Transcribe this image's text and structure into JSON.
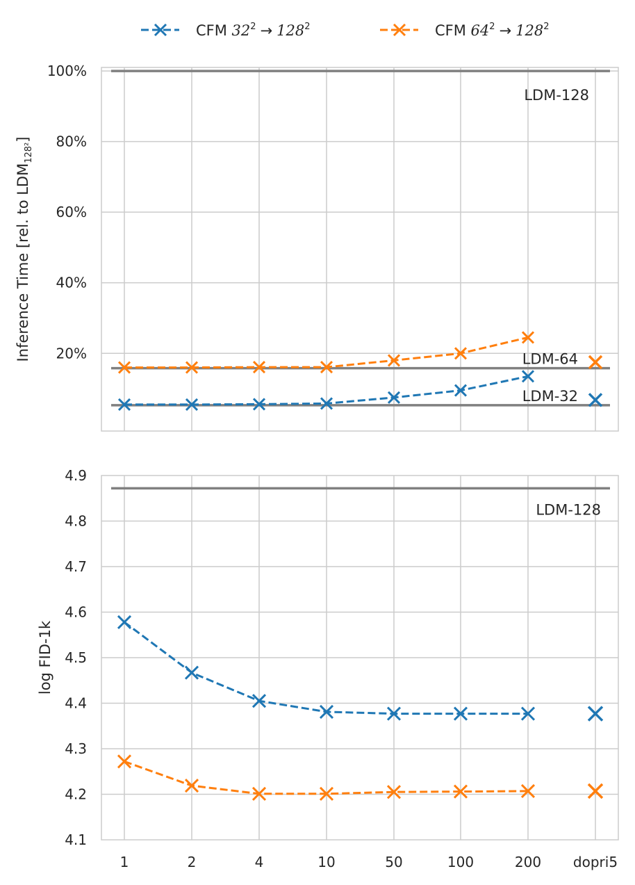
{
  "chart_data": [
    {
      "type": "line",
      "ylabel": "Inference Time [rel. to LDM",
      "ylabel_sub": "128²",
      "ylabel_tail": "]",
      "ylim": [
        -0.02,
        1.01
      ],
      "categories": [
        "1",
        "2",
        "4",
        "10",
        "50",
        "100",
        "200",
        "dopri5"
      ],
      "yticks": [
        0.2,
        0.4,
        0.6,
        0.8,
        1.0
      ],
      "ytick_labels": [
        "20%",
        "40%",
        "60%",
        "80%",
        "100%"
      ],
      "series": [
        {
          "name": "CFM 32² → 128²",
          "color": "#1f77b4",
          "values": [
            0.055,
            0.055,
            0.056,
            0.058,
            0.075,
            0.095,
            0.135,
            0.068
          ]
        },
        {
          "name": "CFM 64² → 128²",
          "color": "#ff7f0e",
          "values": [
            0.16,
            0.16,
            0.161,
            0.161,
            0.18,
            0.2,
            0.245,
            0.175
          ]
        }
      ],
      "reference_lines": [
        {
          "label": "LDM-128",
          "value": 1.0
        },
        {
          "label": "LDM-64",
          "value": 0.158
        },
        {
          "label": "LDM-32",
          "value": 0.053
        }
      ],
      "grid": true
    },
    {
      "type": "line",
      "ylabel": "log FID-1k",
      "ylim": [
        4.1,
        4.9
      ],
      "categories": [
        "1",
        "2",
        "4",
        "10",
        "50",
        "100",
        "200",
        "dopri5"
      ],
      "yticks": [
        4.1,
        4.2,
        4.3,
        4.4,
        4.5,
        4.6,
        4.7,
        4.8,
        4.9
      ],
      "ytick_labels": [
        "4.1",
        "4.2",
        "4.3",
        "4.4",
        "4.5",
        "4.6",
        "4.7",
        "4.8",
        "4.9"
      ],
      "series": [
        {
          "name": "CFM 32² → 128²",
          "color": "#1f77b4",
          "values": [
            4.578,
            4.467,
            4.405,
            4.381,
            4.377,
            4.377,
            4.377,
            4.377
          ]
        },
        {
          "name": "CFM 64² → 128²",
          "color": "#ff7f0e",
          "values": [
            4.272,
            4.219,
            4.201,
            4.201,
            4.205,
            4.206,
            4.207,
            4.207
          ]
        }
      ],
      "reference_lines": [
        {
          "label": "LDM-128",
          "value": 4.872
        }
      ],
      "grid": true
    }
  ],
  "legend": {
    "items": [
      {
        "prefix": "CFM ",
        "from": "32",
        "to": "128",
        "exp": "2",
        "color": "#1f77b4"
      },
      {
        "prefix": "CFM ",
        "from": "64",
        "to": "128",
        "exp": "2",
        "color": "#ff7f0e"
      }
    ],
    "arrow": "→",
    "placement": "top-center"
  },
  "colors": {
    "grid": "#cccccc",
    "ref_line": "#808080",
    "text": "#262626"
  }
}
